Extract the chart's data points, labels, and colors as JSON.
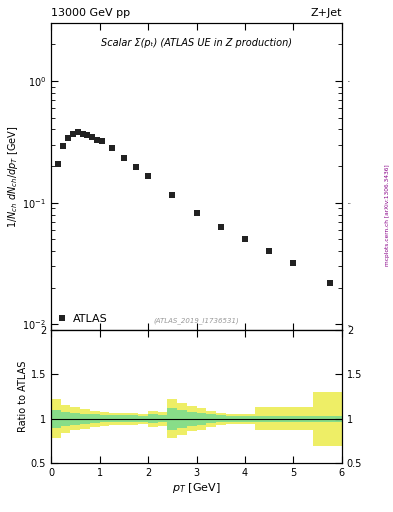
{
  "title_left": "13000 GeV pp",
  "title_right": "Z+Jet",
  "plot_title": "Scalar Σ(pₜ) (ATLAS UE in Z production)",
  "watermark": "(ATLAS_2019_I1736531)",
  "side_label": "mcplots.cern.ch [arXiv:1306.3436]",
  "xlabel": "p$_T$ [GeV]",
  "ylabel": "1/N$_{ch}$ dN$_{ch}$/dp$_T$ [GeV]",
  "ratio_ylabel": "Ratio to ATLAS",
  "data_x": [
    0.15,
    0.25,
    0.35,
    0.45,
    0.55,
    0.65,
    0.75,
    0.85,
    0.95,
    1.05,
    1.25,
    1.5,
    1.75,
    2.0,
    2.5,
    3.0,
    3.5,
    4.0,
    4.5,
    5.0,
    5.75
  ],
  "data_y": [
    0.21,
    0.29,
    0.34,
    0.37,
    0.38,
    0.37,
    0.36,
    0.35,
    0.33,
    0.32,
    0.28,
    0.235,
    0.195,
    0.165,
    0.115,
    0.083,
    0.063,
    0.05,
    0.04,
    0.032,
    0.022
  ],
  "ratio_x_edges": [
    0.0,
    0.2,
    0.4,
    0.6,
    0.8,
    1.0,
    1.2,
    1.4,
    1.6,
    1.8,
    2.0,
    2.2,
    2.4,
    2.6,
    2.8,
    3.0,
    3.2,
    3.4,
    3.6,
    3.8,
    4.0,
    4.2,
    4.4,
    4.6,
    4.8,
    5.0,
    5.4,
    6.0
  ],
  "ratio_green_lo": [
    0.9,
    0.92,
    0.93,
    0.94,
    0.95,
    0.96,
    0.96,
    0.96,
    0.96,
    0.97,
    0.95,
    0.96,
    0.88,
    0.9,
    0.92,
    0.93,
    0.95,
    0.96,
    0.97,
    0.97,
    0.97,
    0.97,
    0.97,
    0.97,
    0.97,
    0.97,
    0.97
  ],
  "ratio_green_hi": [
    1.1,
    1.08,
    1.07,
    1.06,
    1.05,
    1.04,
    1.04,
    1.04,
    1.04,
    1.03,
    1.05,
    1.04,
    1.12,
    1.1,
    1.08,
    1.07,
    1.05,
    1.04,
    1.03,
    1.03,
    1.03,
    1.03,
    1.03,
    1.03,
    1.03,
    1.03,
    1.03
  ],
  "ratio_yellow_lo": [
    0.78,
    0.84,
    0.87,
    0.89,
    0.91,
    0.92,
    0.93,
    0.93,
    0.93,
    0.94,
    0.91,
    0.92,
    0.78,
    0.82,
    0.86,
    0.88,
    0.91,
    0.93,
    0.94,
    0.94,
    0.94,
    0.87,
    0.87,
    0.87,
    0.87,
    0.87,
    0.7
  ],
  "ratio_yellow_hi": [
    1.22,
    1.16,
    1.13,
    1.11,
    1.09,
    1.08,
    1.07,
    1.07,
    1.07,
    1.06,
    1.09,
    1.08,
    1.22,
    1.18,
    1.14,
    1.12,
    1.09,
    1.07,
    1.06,
    1.06,
    1.06,
    1.13,
    1.13,
    1.13,
    1.13,
    1.13,
    1.3
  ],
  "xlim": [
    0,
    6.0
  ],
  "ylim_log": [
    0.009,
    3.0
  ],
  "ratio_ylim": [
    0.5,
    2.0
  ],
  "ratio_yticks": [
    0.5,
    1.0,
    1.5,
    2.0
  ],
  "ratio_yticklabels": [
    "0.5",
    "1",
    "1.5",
    "2"
  ],
  "marker_color": "#222222",
  "marker_size": 4,
  "green_color": "#88dd88",
  "yellow_color": "#eeee66",
  "ratio_line_color": "black",
  "bg_color": "white",
  "grid_color": "#cccccc"
}
